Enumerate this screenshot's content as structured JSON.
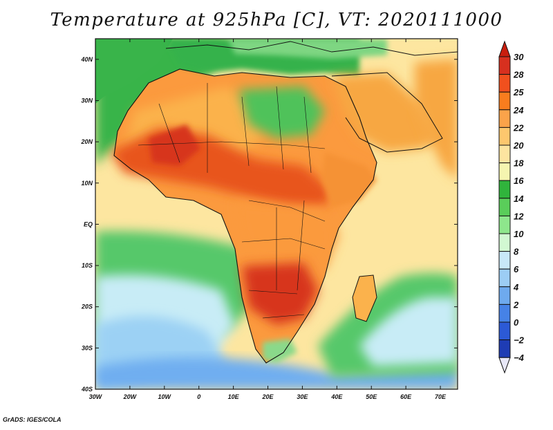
{
  "title": "Temperature at 925hPa [C], VT: 2020111000",
  "credit": "GrADS: IGES/COLA",
  "map": {
    "region": "Africa",
    "variable": "Temperature at 925hPa",
    "units": "C",
    "valid_time": "2020111000",
    "lon_ticks": [
      "30W",
      "20W",
      "10W",
      "0",
      "10E",
      "20E",
      "30E",
      "40E",
      "50E",
      "60E",
      "70E"
    ],
    "lat_ticks": [
      "40N",
      "30N",
      "20N",
      "10N",
      "EQ",
      "10S",
      "20S",
      "30S",
      "40S"
    ],
    "lon_range": [
      -30,
      75
    ],
    "lat_range": [
      -40,
      45
    ]
  },
  "colorbar": {
    "labels": [
      "30",
      "28",
      "25",
      "24",
      "22",
      "20",
      "18",
      "16",
      "14",
      "12",
      "10",
      "8",
      "6",
      "4",
      "2",
      "0",
      "−2",
      "−4"
    ],
    "colors": [
      "#d7301f",
      "#f0501e",
      "#f97d1e",
      "#fba34a",
      "#fdc76e",
      "#fde4a0",
      "#f5f5b0",
      "#30b43c",
      "#5acd5a",
      "#8ee68c",
      "#d2f8d2",
      "#c8e8f8",
      "#9ccdf4",
      "#6eaaee",
      "#4682e6",
      "#2c5ad6",
      "#1e3cb4",
      "#101e6e"
    ],
    "over_color": "#c81e0e",
    "under_color": "#e8e8f8"
  },
  "regions": {
    "ocean_north_atlantic": "#39b44a",
    "ocean_tropical_atlantic": "#fde6a0",
    "ocean_gulf_guinea": "#fbd38a",
    "ocean_south_atlantic_cold": "#9cd1f4",
    "ocean_south_atlantic_cool": "#c8ecf6",
    "ocean_southern": "#6faef0",
    "ocean_indian_warm": "#fde4a0",
    "ocean_indian_south": "#57c86a",
    "sahel_hot": "#e8541d",
    "central_africa": "#fb9a3e",
    "southern_africa_hot": "#d7361a",
    "sahara_west": "#fbb24c",
    "sahara_east_cool": "#4fc25a",
    "arabia": "#f7a743",
    "mediterranean": "#34b24c",
    "europe_cool": "#7ed682",
    "horn_of_africa": "#f59234",
    "madagascar": "#fbb24c",
    "south_africa_cool": "#8ad98a"
  }
}
